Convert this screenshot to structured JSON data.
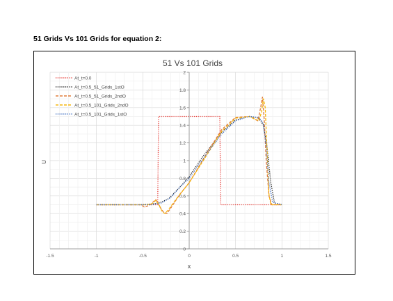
{
  "heading": "51 Grids Vs 101 Grids for equation 2:",
  "chart_data": {
    "type": "line",
    "title": "51 Vs 101 Grids",
    "xlabel": "x",
    "ylabel": "U",
    "xlim": [
      -1.5,
      1.5
    ],
    "ylim": [
      0,
      2
    ],
    "xticks": [
      "-1.5",
      "-1",
      "-0.5",
      "0",
      "0.5",
      "1",
      "1.5"
    ],
    "yticks": [
      "0",
      "0.2",
      "0.4",
      "0.6",
      "0.8",
      "1",
      "1.2",
      "1.4",
      "1.6",
      "1.8",
      "2"
    ],
    "grid": true,
    "legend_position": "top-left",
    "series": [
      {
        "name": "At_t=0.0",
        "color": "#e8413c",
        "dash": "dotted",
        "x": [
          -1,
          -0.34,
          -0.33,
          0.33,
          0.34,
          1
        ],
        "y": [
          0.5,
          0.5,
          1.5,
          1.5,
          0.5,
          0.5
        ]
      },
      {
        "name": "At_t=0.5_51_Grids_1stO",
        "color": "#1a1a1a",
        "dash": "dotted",
        "x": [
          -1,
          -0.5,
          -0.38,
          -0.3,
          -0.22,
          -0.1,
          0,
          0.15,
          0.35,
          0.5,
          0.65,
          0.75,
          0.8,
          0.84,
          0.88,
          0.92,
          1
        ],
        "y": [
          0.5,
          0.5,
          0.51,
          0.53,
          0.57,
          0.7,
          0.82,
          1.05,
          1.32,
          1.46,
          1.5,
          1.48,
          1.4,
          1.15,
          0.75,
          0.52,
          0.5
        ]
      },
      {
        "name": "At_t=0.5_51_Grids_2ndO",
        "color": "#e07b39",
        "dash": "dashed",
        "x": [
          -1,
          -0.52,
          -0.48,
          -0.42,
          -0.36,
          -0.32,
          -0.28,
          -0.24,
          -0.2,
          -0.1,
          0,
          0.2,
          0.35,
          0.5,
          0.65,
          0.74,
          0.77,
          0.79,
          0.81,
          0.83,
          0.86,
          0.89,
          1
        ],
        "y": [
          0.5,
          0.5,
          0.47,
          0.5,
          0.56,
          0.48,
          0.42,
          0.4,
          0.46,
          0.62,
          0.75,
          1.1,
          1.35,
          1.49,
          1.5,
          1.45,
          1.6,
          1.72,
          1.45,
          1.0,
          0.6,
          0.5,
          0.5
        ]
      },
      {
        "name": "At_t=0.5_101_Grids_2ndO",
        "color": "#f5b50e",
        "dash": "dashed",
        "x": [
          -1,
          -0.45,
          -0.4,
          -0.36,
          -0.32,
          -0.29,
          -0.26,
          -0.22,
          -0.15,
          0,
          0.2,
          0.35,
          0.5,
          0.65,
          0.75,
          0.78,
          0.8,
          0.82,
          0.84,
          0.86,
          0.88,
          1
        ],
        "y": [
          0.5,
          0.5,
          0.51,
          0.55,
          0.49,
          0.42,
          0.4,
          0.45,
          0.55,
          0.75,
          1.08,
          1.33,
          1.48,
          1.5,
          1.45,
          1.55,
          1.7,
          1.6,
          1.1,
          0.62,
          0.5,
          0.5
        ]
      },
      {
        "name": "At_t=0.5_101_Grids_1stO",
        "color": "#4472c4",
        "dash": "dotted",
        "x": [
          -1,
          -0.5,
          -0.4,
          -0.3,
          -0.2,
          -0.1,
          0,
          0.15,
          0.35,
          0.5,
          0.65,
          0.75,
          0.8,
          0.83,
          0.86,
          0.9,
          1
        ],
        "y": [
          0.5,
          0.5,
          0.5,
          0.52,
          0.58,
          0.7,
          0.8,
          1.02,
          1.3,
          1.45,
          1.5,
          1.49,
          1.42,
          1.15,
          0.75,
          0.53,
          0.5
        ]
      }
    ]
  }
}
